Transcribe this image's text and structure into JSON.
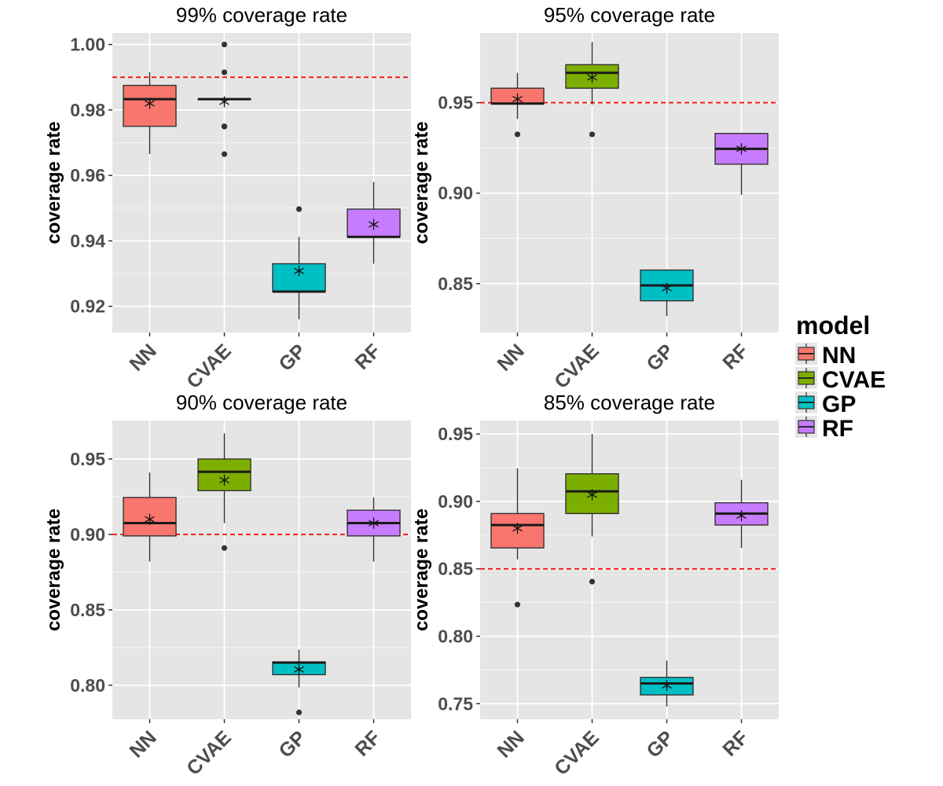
{
  "chart_data": [
    {
      "type": "boxplot",
      "title": "99% coverage rate",
      "xlabel": "",
      "ylabel": "coverage rate",
      "categories": [
        "NN",
        "CVAE",
        "GP",
        "RF"
      ],
      "ylim": [
        0.912,
        1.0035
      ],
      "yticks": [
        0.92,
        0.94,
        0.96,
        0.98,
        1.0
      ],
      "ytick_labels": [
        "0.92",
        "0.94",
        "0.96",
        "0.98",
        "1.00"
      ],
      "grid": true,
      "reference_line": {
        "y": 0.99,
        "color": "#ff0000",
        "style": "dashed"
      },
      "boxes": [
        {
          "model": "NN",
          "whisker_low": 0.9665,
          "q1": 0.975,
          "median": 0.9833,
          "q3": 0.9875,
          "whisker_high": 0.9915,
          "mean": 0.982,
          "outliers": []
        },
        {
          "model": "CVAE",
          "whisker_low": 0.9833,
          "q1": 0.9833,
          "median": 0.9833,
          "q3": 0.9833,
          "whisker_high": 0.9833,
          "mean": 0.9825,
          "outliers": [
            1.0,
            0.9915,
            0.975,
            0.9749,
            0.9665
          ]
        },
        {
          "model": "GP",
          "whisker_low": 0.916,
          "q1": 0.9245,
          "median": 0.9245,
          "q3": 0.933,
          "whisker_high": 0.9412,
          "mean": 0.9308,
          "outliers": [
            0.9497
          ]
        },
        {
          "model": "RF",
          "whisker_low": 0.933,
          "q1": 0.9412,
          "median": 0.9412,
          "q3": 0.9497,
          "whisker_high": 0.958,
          "mean": 0.945,
          "outliers": []
        }
      ]
    },
    {
      "type": "boxplot",
      "title": "95% coverage rate",
      "xlabel": "",
      "ylabel": "coverage rate",
      "categories": [
        "NN",
        "CVAE",
        "GP",
        "RF"
      ],
      "ylim": [
        0.823,
        0.9885
      ],
      "yticks": [
        0.85,
        0.9,
        0.95
      ],
      "ytick_labels": [
        "0.85",
        "0.90",
        "0.95"
      ],
      "grid": true,
      "reference_line": {
        "y": 0.95,
        "color": "#ff0000",
        "style": "dashed"
      },
      "boxes": [
        {
          "model": "NN",
          "whisker_low": 0.941,
          "q1": 0.9495,
          "median": 0.9495,
          "q3": 0.958,
          "whisker_high": 0.9665,
          "mean": 0.952,
          "outliers": [
            0.9325
          ]
        },
        {
          "model": "CVAE",
          "whisker_low": 0.949,
          "q1": 0.958,
          "median": 0.9665,
          "q3": 0.971,
          "whisker_high": 0.9835,
          "mean": 0.964,
          "outliers": [
            0.9325
          ]
        },
        {
          "model": "GP",
          "whisker_low": 0.832,
          "q1": 0.8405,
          "median": 0.849,
          "q3": 0.8575,
          "whisker_high": 0.8575,
          "mean": 0.8475,
          "outliers": []
        },
        {
          "model": "RF",
          "whisker_low": 0.899,
          "q1": 0.916,
          "median": 0.9245,
          "q3": 0.933,
          "whisker_high": 0.933,
          "mean": 0.9245,
          "outliers": []
        }
      ]
    },
    {
      "type": "boxplot",
      "title": "90% coverage rate",
      "xlabel": "",
      "ylabel": "coverage rate",
      "categories": [
        "NN",
        "CVAE",
        "GP",
        "RF"
      ],
      "ylim": [
        0.7775,
        0.9755
      ],
      "yticks": [
        0.8,
        0.85,
        0.9,
        0.95
      ],
      "ytick_labels": [
        "0.80",
        "0.85",
        "0.90",
        "0.95"
      ],
      "grid": true,
      "reference_line": {
        "y": 0.9,
        "color": "#ff0000",
        "style": "dashed"
      },
      "boxes": [
        {
          "model": "NN",
          "whisker_low": 0.882,
          "q1": 0.899,
          "median": 0.9075,
          "q3": 0.9245,
          "whisker_high": 0.941,
          "mean": 0.91,
          "outliers": []
        },
        {
          "model": "CVAE",
          "whisker_low": 0.9075,
          "q1": 0.929,
          "median": 0.9415,
          "q3": 0.95,
          "whisker_high": 0.967,
          "mean": 0.936,
          "outliers": [
            0.891
          ]
        },
        {
          "model": "GP",
          "whisker_low": 0.7985,
          "q1": 0.807,
          "median": 0.815,
          "q3": 0.8155,
          "whisker_high": 0.8235,
          "mean": 0.8105,
          "outliers": [
            0.782
          ]
        },
        {
          "model": "RF",
          "whisker_low": 0.882,
          "q1": 0.899,
          "median": 0.9075,
          "q3": 0.916,
          "whisker_high": 0.9245,
          "mean": 0.9075,
          "outliers": []
        }
      ]
    },
    {
      "type": "boxplot",
      "title": "85% coverage rate",
      "xlabel": "",
      "ylabel": "coverage rate",
      "categories": [
        "NN",
        "CVAE",
        "GP",
        "RF"
      ],
      "ylim": [
        0.7385,
        0.96
      ],
      "yticks": [
        0.75,
        0.8,
        0.85,
        0.9,
        0.95
      ],
      "ytick_labels": [
        "0.75",
        "0.80",
        "0.85",
        "0.90",
        "0.95"
      ],
      "grid": true,
      "reference_line": {
        "y": 0.85,
        "color": "#ff0000",
        "style": "dashed"
      },
      "boxes": [
        {
          "model": "NN",
          "whisker_low": 0.857,
          "q1": 0.8655,
          "median": 0.8825,
          "q3": 0.891,
          "whisker_high": 0.9245,
          "mean": 0.88,
          "outliers": [
            0.8235
          ]
        },
        {
          "model": "CVAE",
          "whisker_low": 0.874,
          "q1": 0.891,
          "median": 0.9075,
          "q3": 0.9205,
          "whisker_high": 0.95,
          "mean": 0.905,
          "outliers": [
            0.8405
          ]
        },
        {
          "model": "GP",
          "whisker_low": 0.748,
          "q1": 0.7565,
          "median": 0.765,
          "q3": 0.7695,
          "whisker_high": 0.782,
          "mean": 0.7635,
          "outliers": []
        },
        {
          "model": "RF",
          "whisker_low": 0.8655,
          "q1": 0.8825,
          "median": 0.891,
          "q3": 0.899,
          "whisker_high": 0.916,
          "mean": 0.8895,
          "outliers": []
        }
      ]
    }
  ],
  "legend": {
    "title": "model",
    "position": "right",
    "items": [
      {
        "label": "NN",
        "color": "#f8766d"
      },
      {
        "label": "CVAE",
        "color": "#7cae00"
      },
      {
        "label": "GP",
        "color": "#00bfc4"
      },
      {
        "label": "RF",
        "color": "#c77cff"
      }
    ]
  },
  "colors": {
    "panel_background": "#e5e5e5",
    "grid": "#ffffff",
    "box_outline": "#333333",
    "reference_line": "#ff0000"
  }
}
